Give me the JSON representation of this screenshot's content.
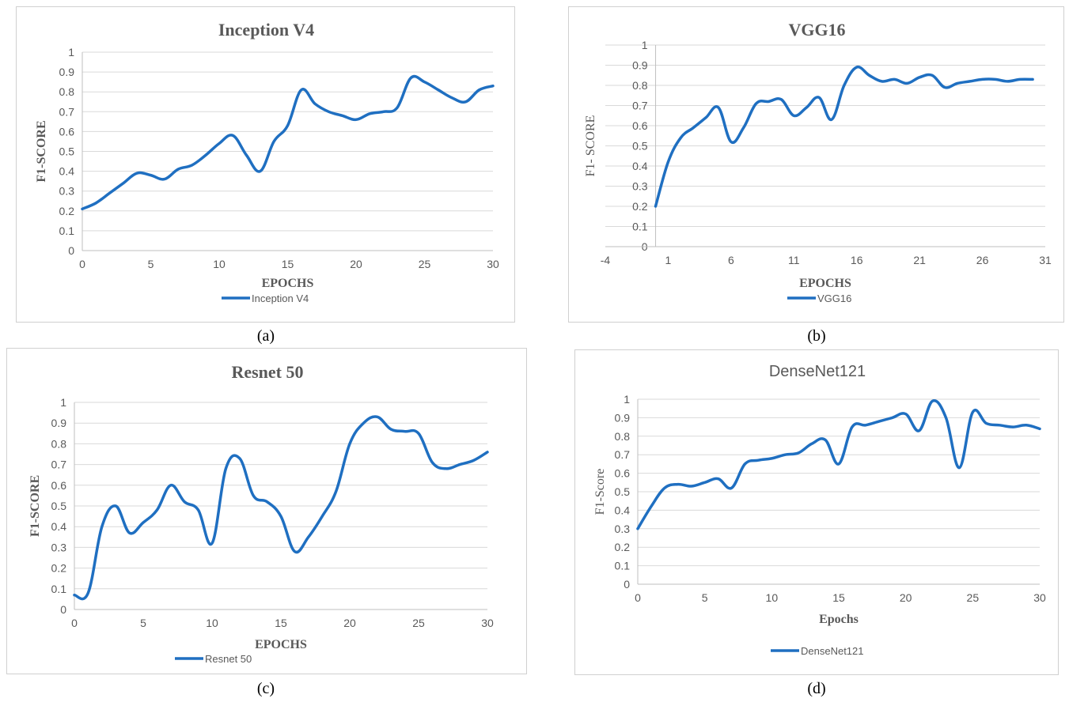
{
  "chart_data": [
    {
      "type": "line",
      "title": "Inception V4",
      "xlabel": "EPOCHS",
      "ylabel": "F1-SCORE",
      "xlim": [
        0,
        30
      ],
      "ylim": [
        0,
        1
      ],
      "xticks": [
        0,
        5,
        10,
        15,
        20,
        25,
        30
      ],
      "yticks": [
        0,
        0.1,
        0.2,
        0.3,
        0.4,
        0.5,
        0.6,
        0.7,
        0.8,
        0.9,
        1
      ],
      "grid": true,
      "legend": "bottom",
      "series": [
        {
          "name": "Inception V4",
          "color": "#1f6fc1",
          "x": [
            0,
            1,
            2,
            3,
            4,
            5,
            6,
            7,
            8,
            9,
            10,
            11,
            12,
            13,
            14,
            15,
            16,
            17,
            18,
            19,
            20,
            21,
            22,
            23,
            24,
            25,
            26,
            27,
            28,
            29,
            30
          ],
          "y": [
            0.21,
            0.24,
            0.29,
            0.34,
            0.39,
            0.38,
            0.36,
            0.41,
            0.43,
            0.48,
            0.54,
            0.58,
            0.48,
            0.4,
            0.55,
            0.63,
            0.81,
            0.74,
            0.7,
            0.68,
            0.66,
            0.69,
            0.7,
            0.72,
            0.87,
            0.85,
            0.81,
            0.77,
            0.75,
            0.81,
            0.83
          ]
        }
      ]
    },
    {
      "type": "line",
      "title": "VGG16",
      "xlabel": "EPOCHS",
      "ylabel": "F1- SCORE",
      "xlim": [
        -4,
        31
      ],
      "ylim": [
        0,
        1
      ],
      "xticks": [
        -4,
        1,
        6,
        11,
        16,
        21,
        26,
        31
      ],
      "yticks": [
        0,
        0.1,
        0.2,
        0.3,
        0.4,
        0.5,
        0.6,
        0.7,
        0.8,
        0.9,
        1
      ],
      "grid": true,
      "legend": "bottom",
      "series": [
        {
          "name": "VGG16",
          "color": "#1f6fc1",
          "x": [
            0,
            1,
            2,
            3,
            4,
            5,
            6,
            7,
            8,
            9,
            10,
            11,
            12,
            13,
            14,
            15,
            16,
            17,
            18,
            19,
            20,
            21,
            22,
            23,
            24,
            25,
            26,
            27,
            28,
            29,
            30
          ],
          "y": [
            0.2,
            0.42,
            0.54,
            0.59,
            0.64,
            0.69,
            0.52,
            0.59,
            0.71,
            0.72,
            0.73,
            0.65,
            0.69,
            0.74,
            0.63,
            0.8,
            0.89,
            0.85,
            0.82,
            0.83,
            0.81,
            0.84,
            0.85,
            0.79,
            0.81,
            0.82,
            0.83,
            0.83,
            0.82,
            0.83,
            0.83
          ]
        }
      ]
    },
    {
      "type": "line",
      "title": "Resnet 50",
      "xlabel": "EPOCHS",
      "ylabel": "F1-SCORE",
      "xlim": [
        0,
        30
      ],
      "ylim": [
        0,
        1
      ],
      "xticks": [
        0,
        5,
        10,
        15,
        20,
        25,
        30
      ],
      "yticks": [
        0,
        0.1,
        0.2,
        0.3,
        0.4,
        0.5,
        0.6,
        0.7,
        0.8,
        0.9,
        1
      ],
      "grid": true,
      "legend": "bottom-left",
      "series": [
        {
          "name": "Resnet 50",
          "color": "#1f6fc1",
          "x": [
            0,
            1,
            2,
            3,
            4,
            5,
            6,
            7,
            8,
            9,
            10,
            11,
            12,
            13,
            14,
            15,
            16,
            17,
            18,
            19,
            20,
            21,
            22,
            23,
            24,
            25,
            26,
            27,
            28,
            29,
            30
          ],
          "y": [
            0.07,
            0.08,
            0.4,
            0.5,
            0.37,
            0.42,
            0.48,
            0.6,
            0.52,
            0.48,
            0.32,
            0.68,
            0.73,
            0.55,
            0.52,
            0.45,
            0.28,
            0.35,
            0.45,
            0.57,
            0.8,
            0.9,
            0.93,
            0.87,
            0.86,
            0.85,
            0.71,
            0.68,
            0.7,
            0.72,
            0.76
          ]
        }
      ]
    },
    {
      "type": "line",
      "title": "DenseNet121",
      "xlabel": "Epochs",
      "ylabel": "F1-Score",
      "xlim": [
        0,
        30
      ],
      "ylim": [
        0,
        1
      ],
      "xticks": [
        0,
        5,
        10,
        15,
        20,
        25,
        30
      ],
      "yticks": [
        0,
        0.1,
        0.2,
        0.3,
        0.4,
        0.5,
        0.6,
        0.7,
        0.8,
        0.9,
        1
      ],
      "grid": true,
      "legend": "bottom",
      "series": [
        {
          "name": "DenseNet121",
          "color": "#1f6fc1",
          "x": [
            0,
            1,
            2,
            3,
            4,
            5,
            6,
            7,
            8,
            9,
            10,
            11,
            12,
            13,
            14,
            15,
            16,
            17,
            18,
            19,
            20,
            21,
            22,
            23,
            24,
            25,
            26,
            27,
            28,
            29,
            30
          ],
          "y": [
            0.3,
            0.42,
            0.52,
            0.54,
            0.53,
            0.55,
            0.57,
            0.52,
            0.65,
            0.67,
            0.68,
            0.7,
            0.71,
            0.76,
            0.78,
            0.65,
            0.85,
            0.86,
            0.88,
            0.9,
            0.92,
            0.83,
            0.99,
            0.9,
            0.63,
            0.93,
            0.87,
            0.86,
            0.85,
            0.86,
            0.84
          ]
        }
      ]
    }
  ],
  "captions": [
    "(a)",
    "(b)",
    "(c)",
    "(d)"
  ]
}
